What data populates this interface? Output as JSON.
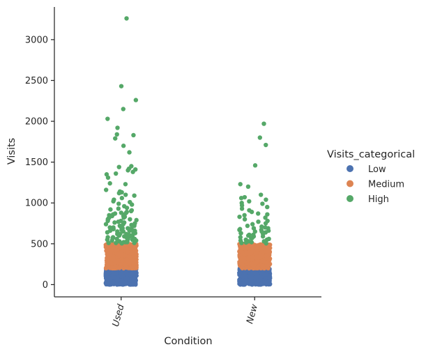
{
  "chart_data": {
    "type": "scatter",
    "subtype": "categorical-strip",
    "title": "",
    "xlabel": "Condition",
    "ylabel": "Visits",
    "categories": [
      "Used",
      "New"
    ],
    "ylim": [
      -150,
      3400
    ],
    "yticks": [
      0,
      500,
      1000,
      1500,
      2000,
      2500,
      3000
    ],
    "grid": false,
    "legend": {
      "title": "Visits_categorical",
      "placement": "right",
      "entries": [
        {
          "label": "Low",
          "color": "#4c72b0"
        },
        {
          "label": "Medium",
          "color": "#dd8452"
        },
        {
          "label": "High",
          "color": "#55a868"
        }
      ]
    },
    "series": [
      {
        "name": "Low",
        "color": "#4c72b0",
        "range": [
          0,
          200
        ],
        "approx_count": {
          "Used": 700,
          "New": 500
        }
      },
      {
        "name": "Medium",
        "color": "#dd8452",
        "range": [
          200,
          500
        ],
        "approx_count": {
          "Used": 600,
          "New": 450
        }
      },
      {
        "name": "High",
        "color": "#55a868",
        "points": {
          "Used": [
            3260,
            2430,
            2260,
            2150,
            2030,
            1920,
            1840,
            1830,
            1790,
            1700,
            1620,
            1450,
            1440,
            1420,
            1410,
            1400,
            1380,
            1360,
            1350,
            1310,
            1240,
            1230,
            1160,
            1140,
            1130,
            1120,
            1100,
            1090,
            1060,
            1040,
            1020,
            1010,
            990,
            980,
            960,
            940,
            930,
            920,
            910,
            900,
            890,
            880,
            870,
            860,
            850,
            840,
            830,
            820,
            810,
            800,
            790,
            780,
            770,
            760,
            750,
            740,
            730,
            720,
            710,
            700,
            690,
            680,
            670,
            660,
            650,
            640,
            630,
            620,
            610,
            600,
            590,
            580,
            570,
            560,
            550,
            540,
            530,
            520,
            510,
            505,
            880,
            860,
            840,
            820,
            800,
            780,
            760,
            740,
            720,
            700,
            680,
            660,
            640,
            620,
            600,
            580,
            560,
            540,
            520,
            510,
            700,
            690,
            680,
            670,
            660,
            650,
            640,
            630,
            620,
            610,
            600,
            590,
            580,
            570,
            560,
            550,
            540,
            530,
            520,
            510
          ],
          "New": [
            1970,
            1800,
            1710,
            1460,
            1230,
            1200,
            1100,
            1070,
            1060,
            1040,
            1020,
            1000,
            990,
            970,
            950,
            930,
            910,
            890,
            870,
            860,
            850,
            830,
            820,
            800,
            780,
            770,
            750,
            740,
            720,
            710,
            700,
            690,
            680,
            670,
            660,
            650,
            640,
            630,
            620,
            610,
            600,
            590,
            580,
            570,
            560,
            550,
            540,
            530,
            520,
            510,
            505,
            690,
            670,
            650,
            630,
            610,
            590,
            570,
            550,
            530,
            515
          ]
        }
      }
    ]
  }
}
